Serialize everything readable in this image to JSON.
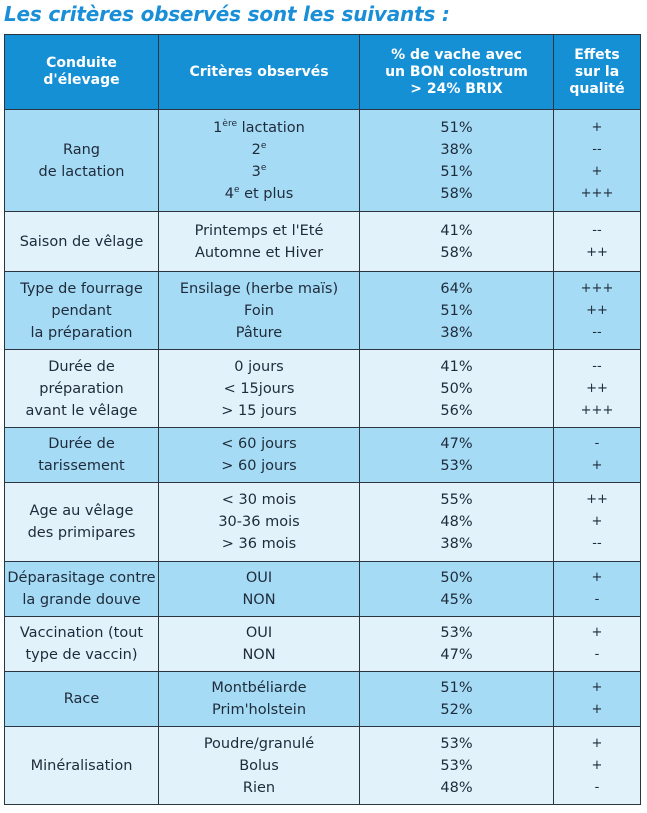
{
  "title": "Les critères observés sont les suivants :",
  "header": {
    "col1": [
      "Conduite",
      "d'élevage"
    ],
    "col2": "Critères observés",
    "col3": [
      "% de vache avec",
      "un BON colostrum",
      "> 24% BRIX"
    ],
    "col4": [
      "Effets",
      "sur la",
      "qualité"
    ]
  },
  "rows": [
    {
      "conduite": [
        "Rang",
        "de lactation"
      ],
      "criteres": [
        [
          "1",
          "ère",
          " lactation"
        ],
        [
          "2",
          "e",
          ""
        ],
        [
          "3",
          "e",
          ""
        ],
        [
          "4",
          "e",
          " et plus"
        ]
      ],
      "percent": [
        "51%",
        "38%",
        "51%",
        "58%"
      ],
      "effets": [
        "+",
        "--",
        "+",
        "+++"
      ]
    },
    {
      "conduite": [
        "Saison de vêlage"
      ],
      "criteres": [
        [
          "Printemps et l'Eté"
        ],
        [
          "Automne et Hiver"
        ]
      ],
      "percent": [
        "41%",
        "58%"
      ],
      "effets": [
        "--",
        "++"
      ]
    },
    {
      "conduite": [
        "Type de fourrage",
        "pendant",
        "la préparation"
      ],
      "criteres": [
        [
          "Ensilage (herbe maïs)"
        ],
        [
          "Foin"
        ],
        [
          "Pâture"
        ]
      ],
      "percent": [
        "64%",
        "51%",
        "38%"
      ],
      "effets": [
        "+++",
        "++",
        "--"
      ]
    },
    {
      "conduite": [
        "Durée de",
        "préparation",
        "avant le vêlage"
      ],
      "criteres": [
        [
          "0 jours"
        ],
        [
          "< 15jours"
        ],
        [
          "> 15 jours"
        ]
      ],
      "percent": [
        "41%",
        "50%",
        "56%"
      ],
      "effets": [
        "--",
        "++",
        "+++"
      ]
    },
    {
      "conduite": [
        "Durée de",
        "tarissement"
      ],
      "criteres": [
        [
          "< 60 jours"
        ],
        [
          "> 60 jours"
        ]
      ],
      "percent": [
        "47%",
        "53%"
      ],
      "effets": [
        "-",
        "+"
      ]
    },
    {
      "conduite": [
        "Age au vêlage",
        "des primipares"
      ],
      "criteres": [
        [
          "< 30 mois"
        ],
        [
          "30-36 mois"
        ],
        [
          "> 36 mois"
        ]
      ],
      "percent": [
        "55%",
        "48%",
        "38%"
      ],
      "effets": [
        "++",
        "+",
        "--"
      ]
    },
    {
      "conduite": [
        "Déparasitage contre",
        "la grande douve"
      ],
      "criteres": [
        [
          "OUI"
        ],
        [
          "NON"
        ]
      ],
      "percent": [
        "50%",
        "45%"
      ],
      "effets": [
        "+",
        "-"
      ]
    },
    {
      "conduite": [
        "Vaccination (tout",
        "type de vaccin)"
      ],
      "criteres": [
        [
          "OUI"
        ],
        [
          "NON"
        ]
      ],
      "percent": [
        "53%",
        "47%"
      ],
      "effets": [
        "+",
        "-"
      ]
    },
    {
      "conduite": [
        "Race"
      ],
      "criteres": [
        [
          "Montbéliarde"
        ],
        [
          "Prim'holstein"
        ]
      ],
      "percent": [
        "51%",
        "52%"
      ],
      "effets": [
        "+",
        "+"
      ]
    },
    {
      "conduite": [
        "Minéralisation"
      ],
      "criteres": [
        [
          "Poudre/granulé"
        ],
        [
          "Bolus"
        ],
        [
          "Rien"
        ]
      ],
      "percent": [
        "53%",
        "53%",
        "48%"
      ],
      "effets": [
        "+",
        "+",
        "-"
      ]
    }
  ],
  "colors": {
    "title": "#1a8fd8",
    "header_bg": "#1690d5",
    "row_dark": "#a6dbf5",
    "row_light": "#e1f2fb",
    "border": "#2a3540"
  }
}
